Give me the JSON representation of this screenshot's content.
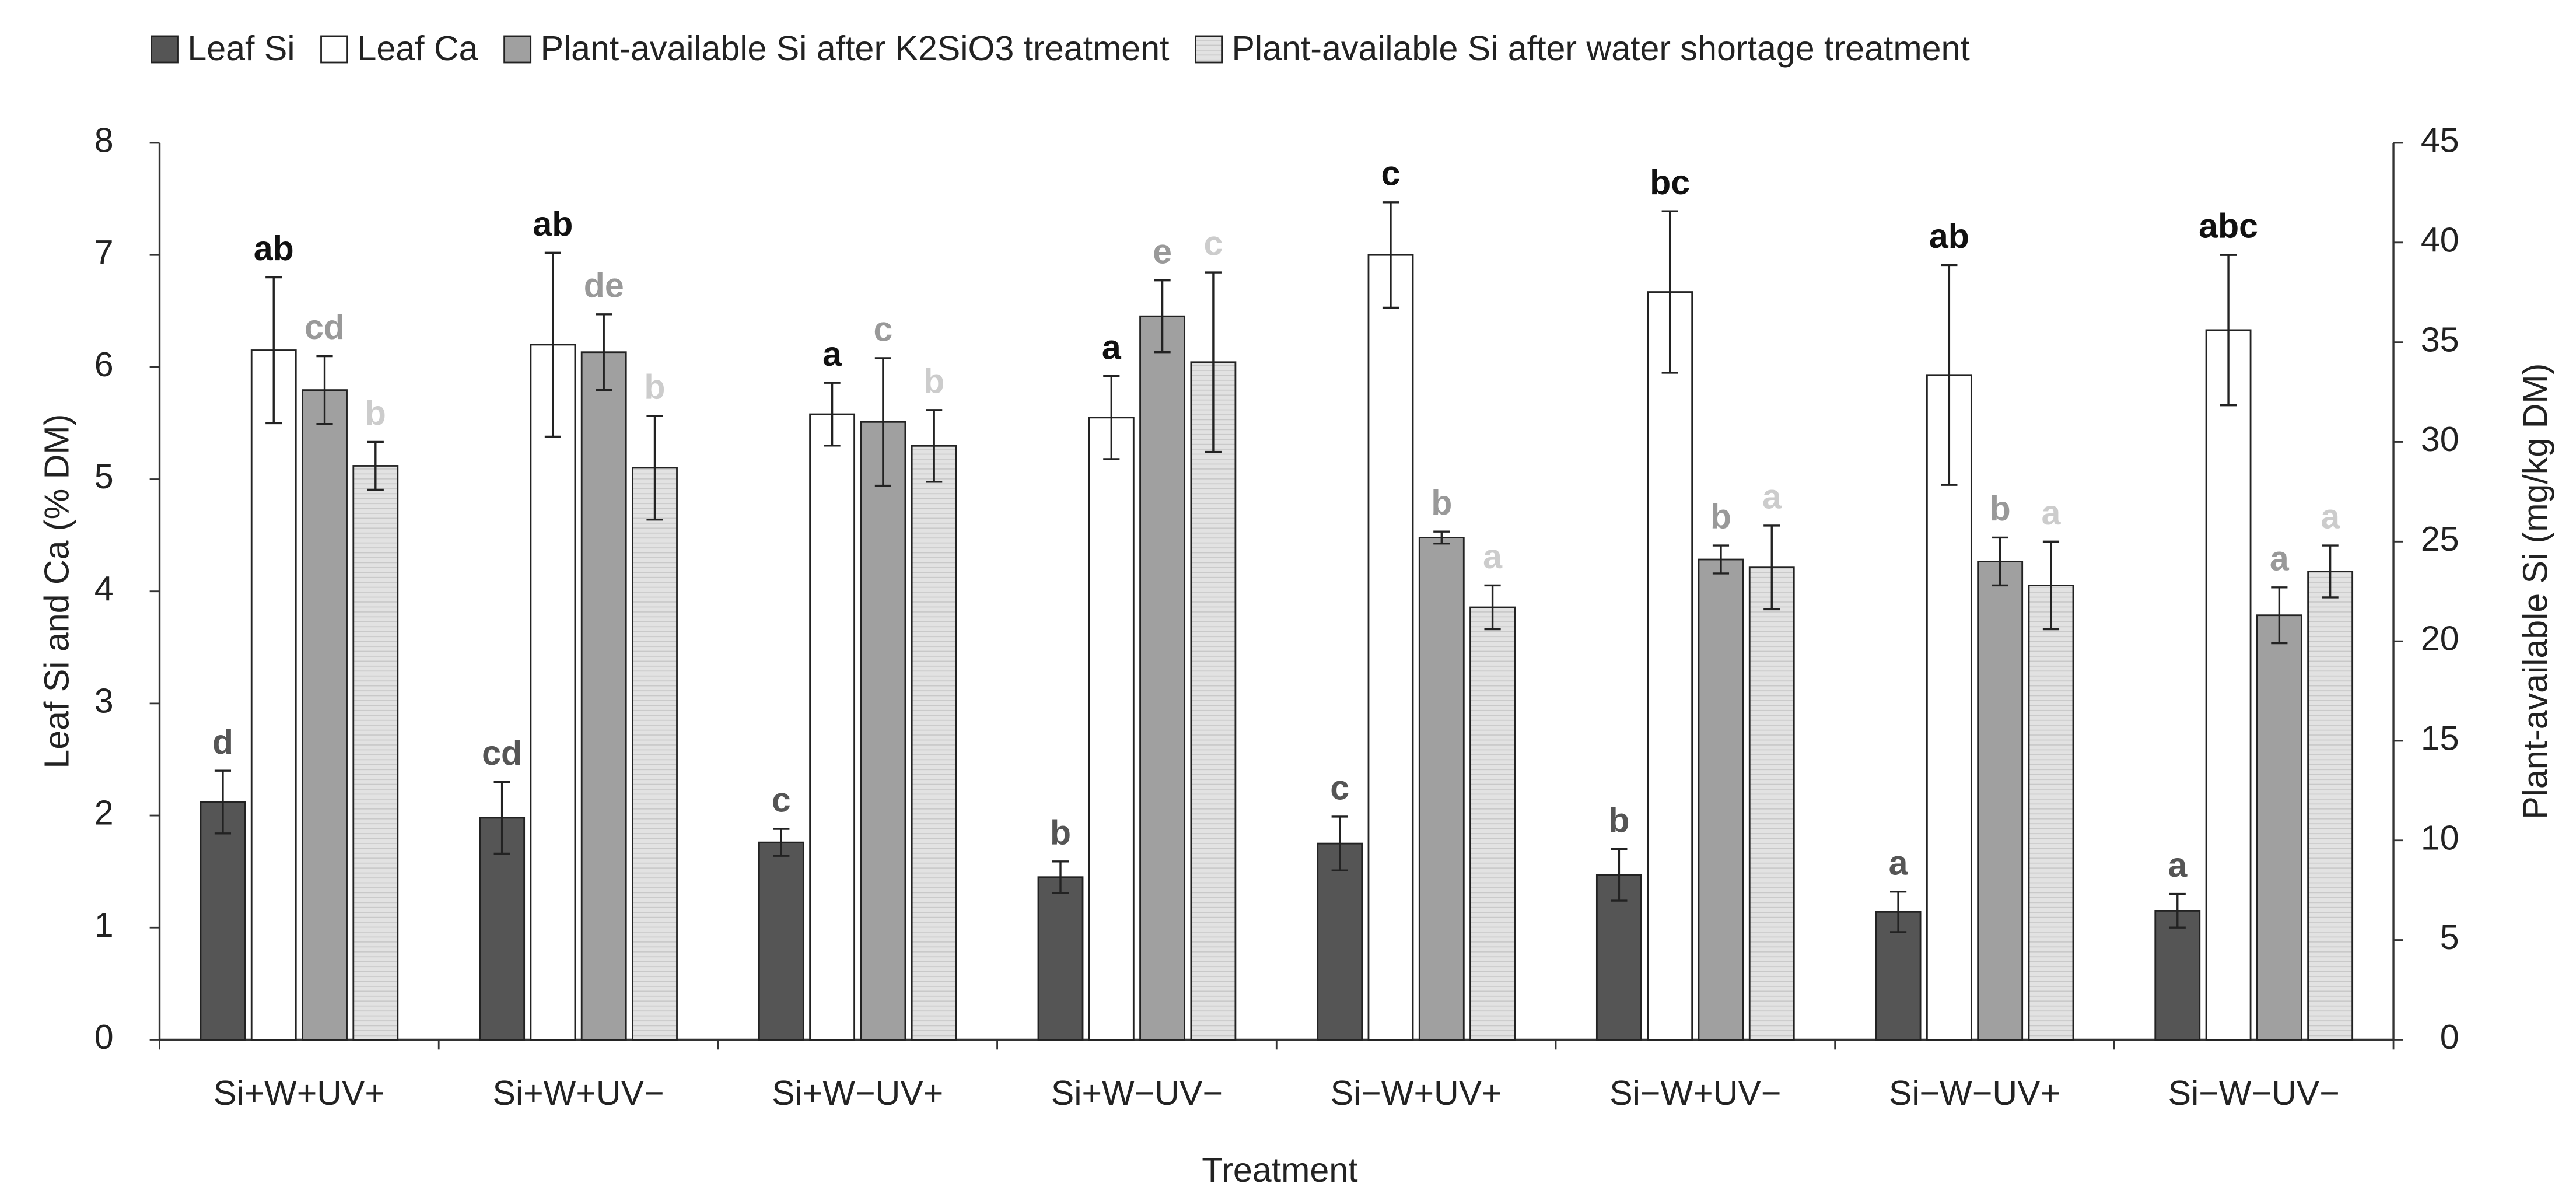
{
  "chart_data": {
    "type": "bar",
    "x_label": "Treatment",
    "y_label": "Leaf Si and Ca (% DM)",
    "y2_label": "Plant-available Si (mg/kg DM)",
    "categories": [
      "Si+W+UV+",
      "Si+W+UV−",
      "Si+W−UV+",
      "Si+W−UV−",
      "Si−W+UV+",
      "Si−W+UV−",
      "Si−W−UV+",
      "Si−W−UV−"
    ],
    "ylim": [
      0,
      8
    ],
    "yticks": [
      0,
      1,
      2,
      3,
      4,
      5,
      6,
      7,
      8
    ],
    "y2lim": [
      0,
      45
    ],
    "y2ticks": [
      0,
      5,
      10,
      15,
      20,
      25,
      30,
      35,
      40,
      45
    ],
    "legend": "top",
    "series": [
      {
        "name": "Leaf Si",
        "color": "#555555",
        "label_color": "#555555",
        "axis": "y",
        "values": [
          2.12,
          1.98,
          1.76,
          1.45,
          1.75,
          1.47,
          1.14,
          1.15
        ],
        "errors": [
          0.28,
          0.32,
          0.12,
          0.14,
          0.24,
          0.23,
          0.18,
          0.15
        ],
        "labels": [
          "d",
          "cd",
          "c",
          "b",
          "c",
          "b",
          "a",
          "a"
        ]
      },
      {
        "name": "Leaf Ca",
        "color": "#ffffff",
        "label_color": "#111111",
        "axis": "y",
        "values": [
          6.15,
          6.2,
          5.58,
          5.55,
          7.0,
          6.67,
          5.93,
          6.33
        ],
        "errors": [
          0.65,
          0.82,
          0.28,
          0.37,
          0.47,
          0.72,
          0.98,
          0.67
        ],
        "labels": [
          "ab",
          "ab",
          "a",
          "a",
          "c",
          "bc",
          "ab",
          "abc"
        ]
      },
      {
        "name": "Plant-available Si after K2SiO3 treatment",
        "color": "#a0a0a0",
        "label_color": "#999999",
        "axis": "y2",
        "values": [
          32.6,
          34.5,
          31.0,
          36.3,
          25.2,
          24.1,
          24.0,
          21.3
        ],
        "errors": [
          1.7,
          1.9,
          3.2,
          1.8,
          0.3,
          0.7,
          1.2,
          1.4
        ],
        "labels": [
          "cd",
          "de",
          "c",
          "e",
          "b",
          "b",
          "b",
          "a"
        ]
      },
      {
        "name": "Plant-available Si after water shortage treatment",
        "color": "#e2e2e2",
        "label_color": "#cccccc",
        "axis": "y2",
        "values": [
          28.8,
          28.7,
          29.8,
          34.0,
          21.7,
          23.7,
          22.8,
          23.5
        ],
        "errors": [
          1.2,
          2.6,
          1.8,
          4.5,
          1.1,
          2.1,
          2.2,
          1.3
        ],
        "labels": [
          "b",
          "b",
          "b",
          "c",
          "a",
          "a",
          "a",
          "a"
        ]
      }
    ]
  }
}
